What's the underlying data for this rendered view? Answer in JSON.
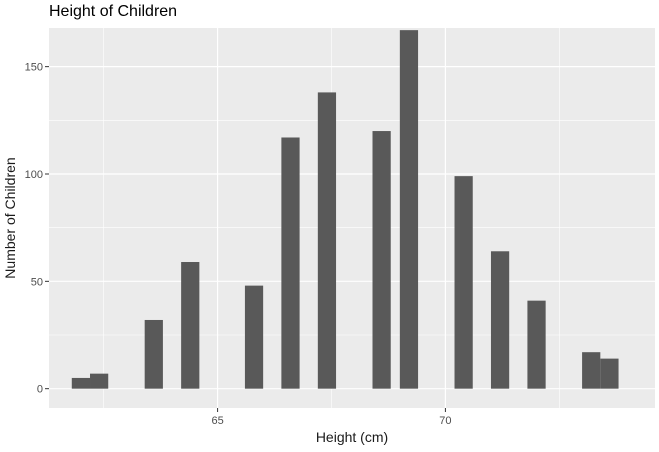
{
  "chart_data": {
    "type": "bar",
    "title": "Height of Children",
    "xlabel": "Height (cm)",
    "ylabel": "Number of Children",
    "xlim": [
      61.3,
      74.6
    ],
    "ylim": [
      -9,
      168
    ],
    "xticks": [
      65,
      70
    ],
    "yticks": [
      0,
      50,
      100,
      150
    ],
    "grid": true,
    "bin_width": 0.4,
    "bins": [
      {
        "x": 62.0,
        "count": 5
      },
      {
        "x": 62.4,
        "count": 7
      },
      {
        "x": 63.6,
        "count": 32
      },
      {
        "x": 64.4,
        "count": 59
      },
      {
        "x": 65.8,
        "count": 48
      },
      {
        "x": 66.6,
        "count": 117
      },
      {
        "x": 67.4,
        "count": 138
      },
      {
        "x": 68.6,
        "count": 120
      },
      {
        "x": 69.2,
        "count": 167
      },
      {
        "x": 70.4,
        "count": 99
      },
      {
        "x": 71.2,
        "count": 64
      },
      {
        "x": 72.0,
        "count": 41
      },
      {
        "x": 73.2,
        "count": 17
      },
      {
        "x": 73.6,
        "count": 14
      }
    ],
    "colors": {
      "bar": "#595959",
      "panel": "#ebebeb",
      "grid_major": "#ffffff",
      "tick": "#333333"
    }
  }
}
